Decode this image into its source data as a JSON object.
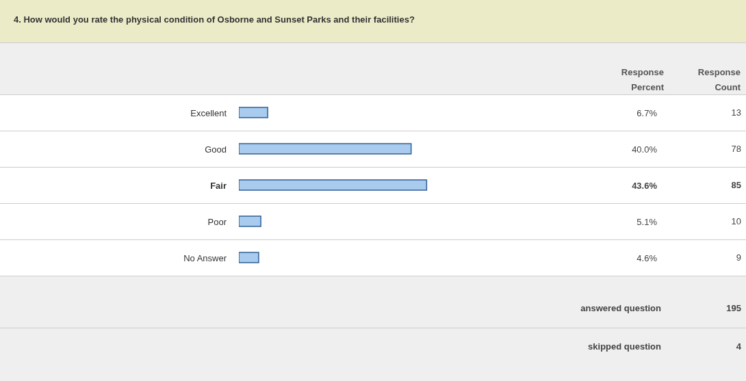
{
  "chart_data": {
    "type": "bar",
    "orientation": "horizontal",
    "title": "4. How would you rate the physical condition of Osborne and Sunset Parks and their facilities?",
    "categories": [
      "Excellent",
      "Good",
      "Fair",
      "Poor",
      "No Answer"
    ],
    "values": [
      6.7,
      40.0,
      43.6,
      5.1,
      4.6
    ],
    "value_labels": [
      "6.7%",
      "40.0%",
      "43.6%",
      "5.1%",
      "4.6%"
    ],
    "color": "#a8cbee",
    "annotations": [
      "Response Percent",
      "Response Count",
      "13",
      "78",
      "85",
      "10",
      "9",
      "answered question",
      "195",
      "skipped question",
      "4"
    ]
  }
}
